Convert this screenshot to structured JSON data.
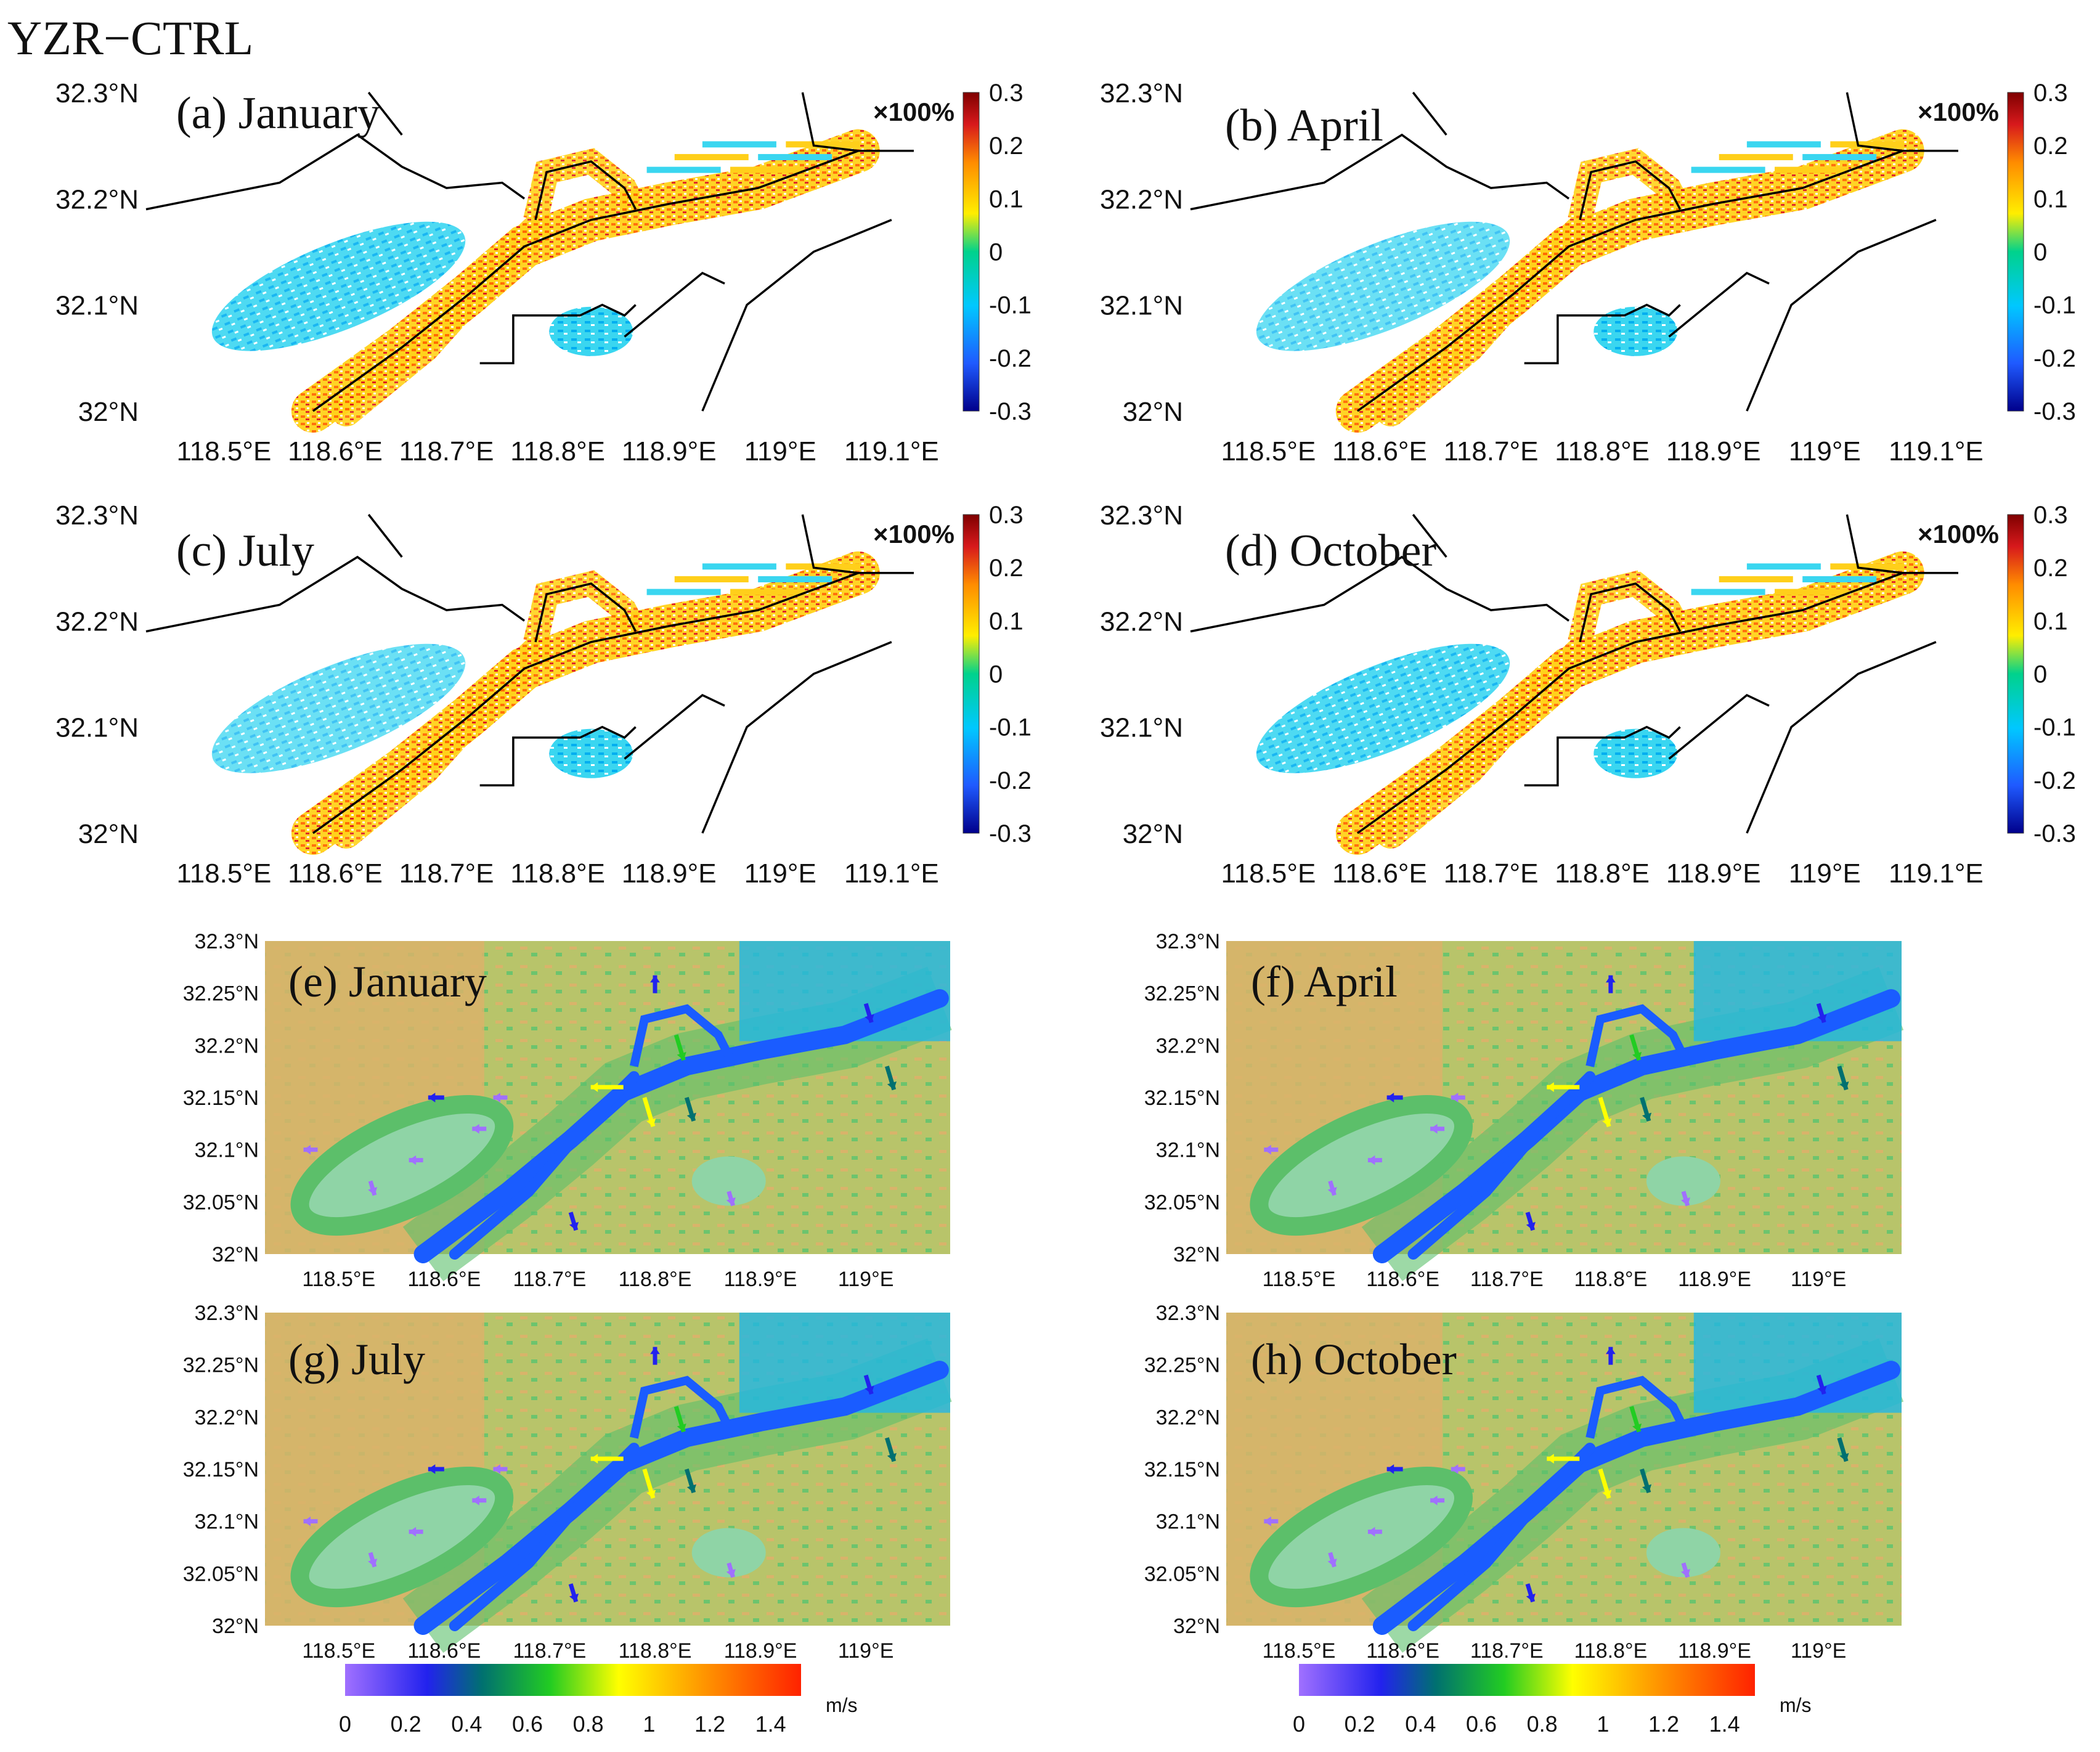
{
  "figure": {
    "main_title": "YZR−CTRL"
  },
  "upper_panels": [
    {
      "label": "(a) January"
    },
    {
      "label": "(b) April"
    },
    {
      "label": "(c) July"
    },
    {
      "label": "(d) October"
    }
  ],
  "upper_axes": {
    "lat_ticks": [
      "32.3°N",
      "32.2°N",
      "32.1°N",
      "32°N"
    ],
    "lon_ticks": [
      "118.5°E",
      "118.6°E",
      "118.7°E",
      "118.8°E",
      "118.9°E",
      "119°E",
      "119.1°E"
    ],
    "lat_range": [
      32.0,
      32.3
    ],
    "lon_range": [
      118.43,
      119.12
    ]
  },
  "upper_colorbar": {
    "unit_label": "×100%",
    "ticks": [
      "0.3",
      "0.2",
      "0.1",
      "0",
      "-0.1",
      "-0.2",
      "-0.3"
    ],
    "range": [
      -0.3,
      0.3
    ],
    "colormap": [
      "#7f0000",
      "#d7191c",
      "#ff8c00",
      "#ffee00",
      "#00d28c",
      "#00c8ff",
      "#1f5aff",
      "#00008b"
    ]
  },
  "lower_panels": [
    {
      "label": "(e) January"
    },
    {
      "label": "(f) April"
    },
    {
      "label": "(g) July"
    },
    {
      "label": "(h) October"
    }
  ],
  "lower_axes": {
    "lat_ticks": [
      "32.3°N",
      "32.25°N",
      "32.2°N",
      "32.15°N",
      "32.1°N",
      "32.05°N",
      "32°N"
    ],
    "lon_ticks_e": [
      "118.5°E",
      "118.6°E",
      "118.7°E",
      "118.8°E",
      "118.9°E",
      "119°E"
    ],
    "lon_ticks_g": [
      "118.5°E",
      "118.6°E",
      "118.7°E",
      "118.8°E",
      "118.9°E",
      "119°E"
    ],
    "lon_ticks_h": [
      "118.5°E",
      "118.6°E",
      "118.7°E",
      "118.8°E",
      "118.9°E",
      "119°E"
    ],
    "lat_range": [
      32.0,
      32.3
    ],
    "lon_range": [
      118.43,
      119.08
    ]
  },
  "wind_colorbar": {
    "unit": "m/s",
    "ticks": [
      "0",
      "0.2",
      "0.4",
      "0.6",
      "0.8",
      "1",
      "1.2",
      "1.4"
    ],
    "range": [
      0,
      1.5
    ],
    "colormap": [
      "#a070ff",
      "#2222ee",
      "#007070",
      "#22cc22",
      "#ffff00",
      "#ff9900",
      "#ff2200"
    ]
  },
  "colors": {
    "terrain_low": "#d9b36a",
    "terrain_mid": "#a8c46a",
    "terrain_green": "#5cbf6a",
    "terrain_hill": "#8fd4a6",
    "water": "#1a5cff",
    "lake": "#1fb7e6",
    "boundary": "#000000"
  }
}
